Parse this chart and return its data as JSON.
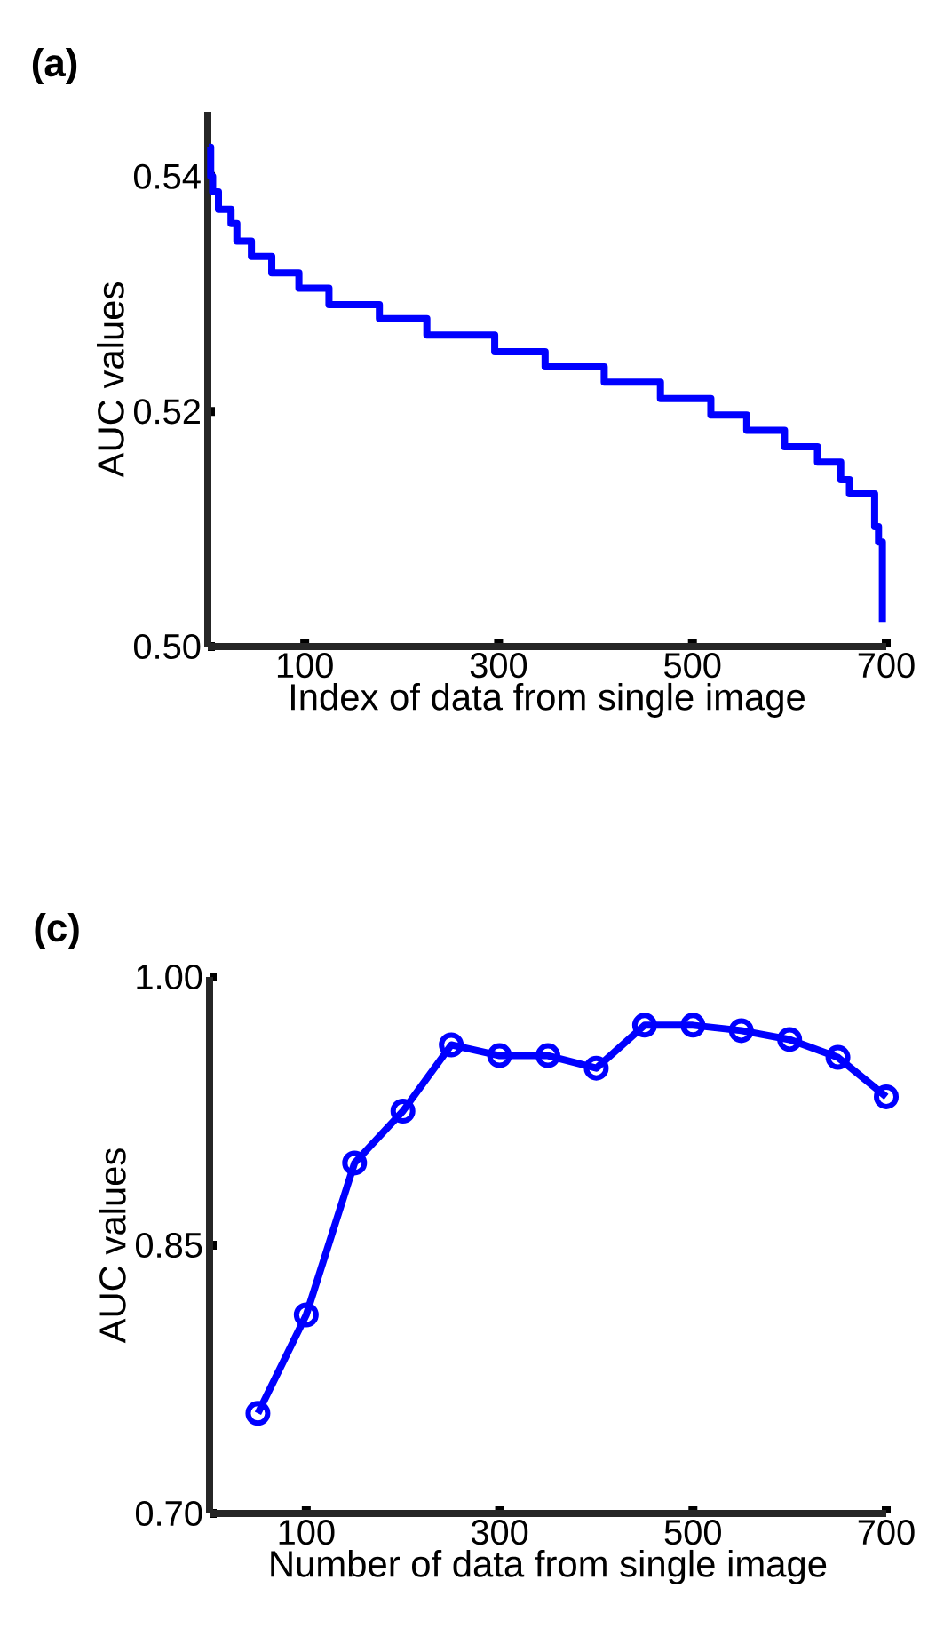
{
  "chart_data": [
    {
      "type": "step",
      "title": "(a)",
      "xlabel": "Index of data from single image",
      "ylabel": "AUC values",
      "x": [
        1,
        3,
        5,
        11,
        24,
        30,
        45,
        66,
        94,
        125,
        177,
        226,
        296,
        348,
        409,
        467,
        519,
        556,
        595,
        629,
        653,
        662,
        688,
        692,
        696
      ],
      "series": [
        {
          "color": "#0000ff",
          "values": [
            0.5425,
            0.54,
            0.5387,
            0.5372,
            0.536,
            0.5345,
            0.5332,
            0.5318,
            0.5305,
            0.5291,
            0.5279,
            0.5265,
            0.5251,
            0.5238,
            0.5225,
            0.5211,
            0.5197,
            0.5184,
            0.517,
            0.5157,
            0.5142,
            0.513,
            0.5102,
            0.5089,
            0.5021
          ]
        }
      ],
      "xlim": [
        0,
        700
      ],
      "ylim": [
        0.5,
        0.5455
      ],
      "xticks": [
        100,
        300,
        500,
        700
      ],
      "yticks": [
        {
          "value": 0.5,
          "label": "0.50"
        },
        0.52,
        0.54
      ]
    },
    {
      "type": "line",
      "title": "(c)",
      "xlabel": "Number of data from single image",
      "ylabel": "AUC values",
      "marker": "circle",
      "x": [
        50,
        100,
        150,
        200,
        250,
        300,
        350,
        400,
        450,
        500,
        550,
        600,
        650,
        700
      ],
      "series": [
        {
          "color": "#0000ff",
          "values": [
            0.756,
            0.811,
            0.896,
            0.925,
            0.962,
            0.956,
            0.956,
            0.949,
            0.973,
            0.973,
            0.97,
            0.965,
            0.955,
            0.933
          ]
        }
      ],
      "xlim": [
        0,
        700
      ],
      "ylim": [
        0.7,
        1.0
      ],
      "xticks": [
        100,
        300,
        500,
        700
      ],
      "yticks": [
        {
          "value": 0.7,
          "label": "0.70"
        },
        0.85,
        {
          "value": 1.0,
          "label": "1.00"
        }
      ]
    }
  ]
}
